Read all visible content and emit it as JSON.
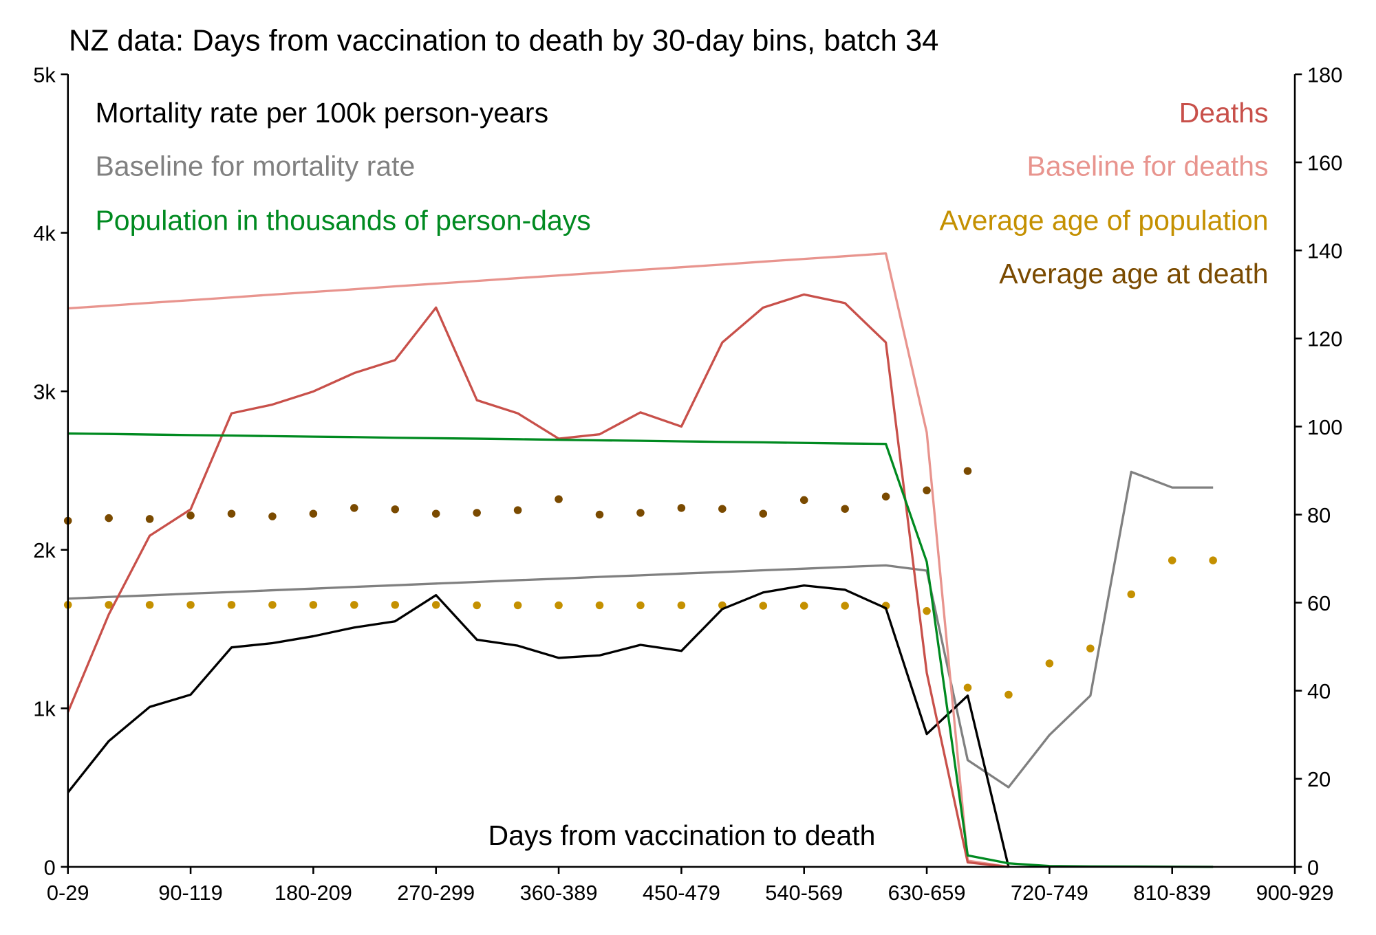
{
  "chart_data": {
    "type": "line",
    "title": "NZ data: Days from vaccination to death by 30-day bins, batch 34",
    "xlabel": "Days from vaccination to death",
    "x_tick_labels": [
      "0-29",
      "90-119",
      "180-209",
      "270-299",
      "360-389",
      "450-479",
      "540-569",
      "630-659",
      "720-749",
      "810-839",
      "900-929"
    ],
    "categories": [
      "0-29",
      "30-59",
      "60-89",
      "90-119",
      "120-149",
      "150-179",
      "180-209",
      "210-239",
      "240-269",
      "270-299",
      "300-329",
      "330-359",
      "360-389",
      "390-419",
      "420-449",
      "450-479",
      "480-509",
      "510-539",
      "540-569",
      "570-599",
      "600-629",
      "630-659",
      "660-689",
      "690-719",
      "720-749",
      "750-779",
      "780-809",
      "810-839",
      "840-869"
    ],
    "left_axis": {
      "ylim": [
        0,
        5000
      ],
      "tick_labels": [
        "0",
        "1k",
        "2k",
        "3k",
        "4k",
        "5k"
      ]
    },
    "right_axis": {
      "ylim": [
        0,
        180
      ],
      "tick_labels": [
        "0",
        "20",
        "40",
        "60",
        "80",
        "100",
        "120",
        "140",
        "160",
        "180"
      ]
    },
    "series": [
      {
        "name": "Mortality rate per 100k person-years",
        "axis": "left",
        "style": "line",
        "color": "#000000",
        "values": [
          469,
          794,
          1009,
          1086,
          1384,
          1411,
          1455,
          1510,
          1549,
          1714,
          1433,
          1395,
          1318,
          1334,
          1400,
          1362,
          1626,
          1731,
          1775,
          1748,
          1632,
          838,
          1080,
          0,
          null,
          null,
          null,
          null,
          null
        ]
      },
      {
        "name": "Baseline for mortality rate",
        "axis": "left",
        "style": "line",
        "color": "#808080",
        "values": [
          1692,
          1703,
          1713,
          1724,
          1734,
          1745,
          1755,
          1766,
          1776,
          1787,
          1797,
          1808,
          1818,
          1829,
          1839,
          1850,
          1860,
          1871,
          1881,
          1892,
          1902,
          1869,
          673,
          502,
          832,
          1080,
          2492,
          2393,
          2393
        ]
      },
      {
        "name": "Population in thousands of person-days",
        "axis": "left",
        "style": "line",
        "color": "#008a20",
        "values": [
          2734,
          2731,
          2727,
          2724,
          2721,
          2717,
          2714,
          2711,
          2707,
          2704,
          2701,
          2698,
          2694,
          2691,
          2688,
          2684,
          2681,
          2678,
          2674,
          2671,
          2668,
          1924,
          72,
          22,
          5,
          3,
          2,
          1,
          0
        ]
      },
      {
        "name": "Deaths",
        "axis": "left",
        "style": "line",
        "color": "#c8504a",
        "values": [
          976,
          1593,
          2089,
          2255,
          2861,
          2916,
          2999,
          3115,
          3197,
          3528,
          2944,
          2861,
          2701,
          2729,
          2867,
          2778,
          3308,
          3528,
          3611,
          3556,
          3308,
          1224,
          28,
          0,
          null,
          null,
          null,
          null,
          null
        ]
      },
      {
        "name": "Baseline for deaths",
        "axis": "left",
        "style": "line",
        "color": "#e8948e",
        "values": [
          3523,
          3540,
          3558,
          3575,
          3592,
          3610,
          3627,
          3644,
          3662,
          3679,
          3696,
          3714,
          3731,
          3748,
          3766,
          3783,
          3800,
          3818,
          3835,
          3852,
          3870,
          2740,
          39,
          0,
          null,
          null,
          null,
          null,
          null
        ]
      },
      {
        "name": "Average age of population",
        "axis": "right",
        "style": "dots",
        "color": "#c49000",
        "values": [
          59.5,
          59.5,
          59.5,
          59.5,
          59.5,
          59.5,
          59.5,
          59.5,
          59.5,
          59.5,
          59.4,
          59.4,
          59.4,
          59.4,
          59.4,
          59.4,
          59.4,
          59.3,
          59.3,
          59.3,
          59.3,
          58.1,
          40.7,
          39.1,
          46.2,
          49.6,
          61.9,
          69.6,
          69.6
        ]
      },
      {
        "name": "Average age at death",
        "axis": "right",
        "style": "dots",
        "color": "#7a4a00",
        "values": [
          78.6,
          79.2,
          79.0,
          79.8,
          80.2,
          79.6,
          80.2,
          81.5,
          81.2,
          80.2,
          80.4,
          81.0,
          83.5,
          80.0,
          80.4,
          81.5,
          81.3,
          80.2,
          83.3,
          81.3,
          84.1,
          85.5,
          89.9,
          null,
          null,
          null,
          null,
          null,
          null
        ]
      }
    ],
    "legend_left": [
      "Mortality rate per 100k person-years",
      "Baseline for mortality rate",
      "Population in thousands of person-days"
    ],
    "legend_right": [
      "Deaths",
      "Baseline for deaths",
      "Average age of population",
      "Average age at death"
    ],
    "grid": false
  }
}
